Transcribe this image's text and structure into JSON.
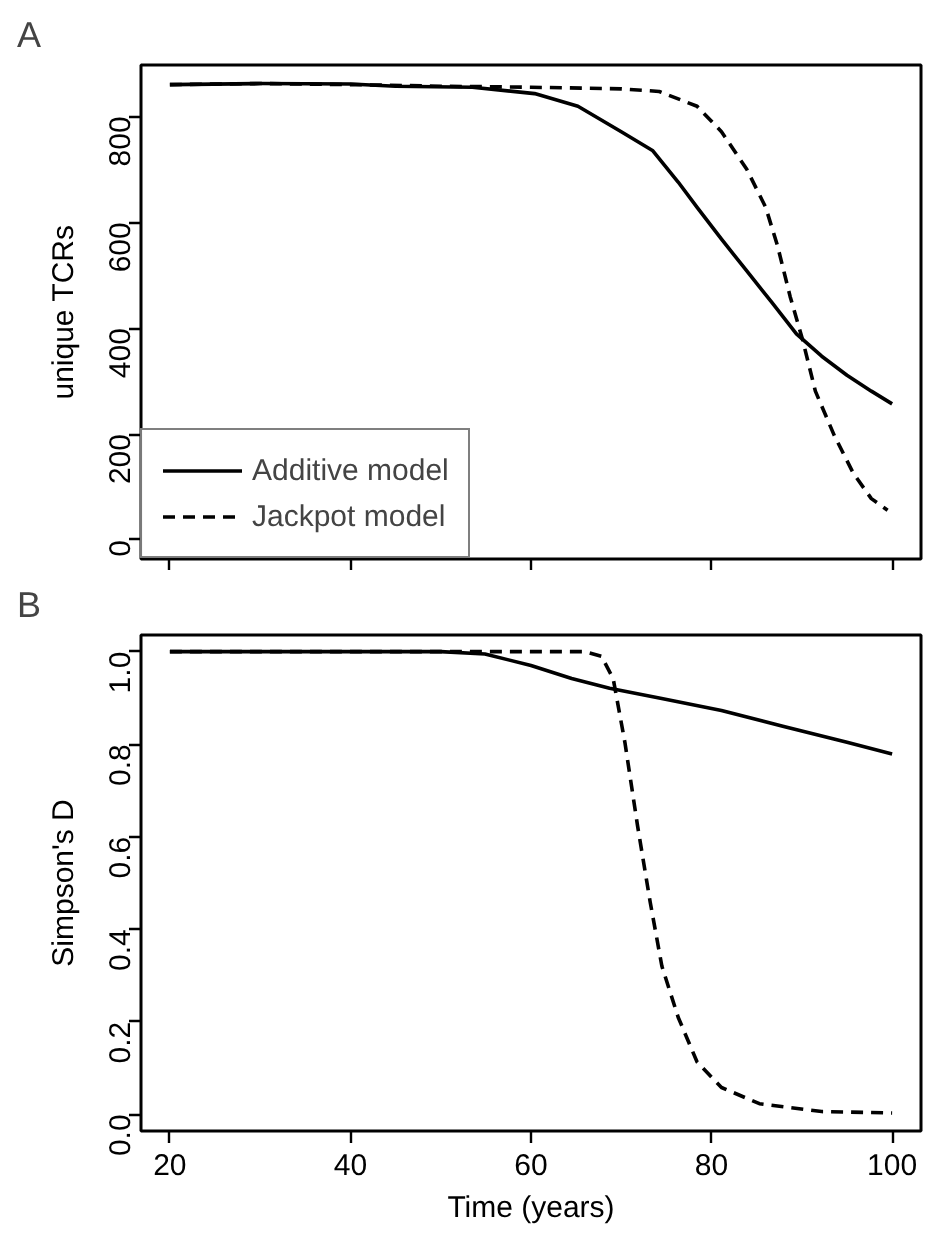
{
  "chart_data": [
    {
      "type": "line",
      "title": "A",
      "ylabel": "unique TCRs",
      "xlim": [
        16.8,
        103.2
      ],
      "ylim": [
        -36,
        897
      ],
      "xticks": [
        20,
        40,
        60,
        80,
        100
      ],
      "yticks": [
        0,
        200,
        400,
        600,
        800
      ],
      "tick_labels": "y",
      "legend": "bottom left",
      "grid": false,
      "series": [
        {
          "name": "Additive model",
          "color": "#000000",
          "line_style": "solid",
          "x": [
            20,
            30,
            40,
            45,
            53.5,
            60.4,
            65.2,
            70,
            73.5,
            76.3,
            78.4,
            81.1,
            83.9,
            86.7,
            89.4,
            92.2,
            95,
            97.7,
            100
          ],
          "values": [
            860,
            862,
            861,
            857,
            855,
            843,
            819,
            771,
            735,
            676,
            628,
            568,
            508,
            448,
            389,
            347,
            311,
            281,
            257
          ]
        },
        {
          "name": "Jackpot model",
          "color": "#000000",
          "line_style": "dashed",
          "x": [
            20,
            30,
            40,
            50,
            60,
            70,
            74.2,
            78.4,
            81.1,
            83.9,
            86,
            87.3,
            88.7,
            90.1,
            91.5,
            93.6,
            95.7,
            97.7,
            99.5
          ],
          "values": [
            860,
            862,
            860,
            857,
            855,
            852,
            847,
            819,
            771,
            700,
            628,
            556,
            460,
            377,
            281,
            197,
            126,
            78,
            56
          ]
        }
      ]
    },
    {
      "type": "line",
      "title": "B",
      "xlabel": "Time (years)",
      "ylabel": "Simpson's D",
      "xlim": [
        16.8,
        103.2
      ],
      "ylim": [
        -0.036,
        1.036
      ],
      "xticks": [
        20,
        40,
        60,
        80,
        100
      ],
      "yticks": [
        {
          "value": 0,
          "label": "0.0"
        },
        0.2,
        0.4,
        0.6,
        0.8,
        {
          "value": 1,
          "label": "1.0"
        }
      ],
      "legend": false,
      "grid": false,
      "series": [
        {
          "color": "#000000",
          "line_style": "solid",
          "x": [
            20,
            50,
            54.9,
            60,
            64.5,
            68.7,
            74.2,
            81.1,
            88,
            95,
            100
          ],
          "values": [
            1.0,
            1.0,
            0.995,
            0.97,
            0.942,
            0.921,
            0.9,
            0.873,
            0.838,
            0.804,
            0.779
          ]
        },
        {
          "color": "#000000",
          "line_style": "dashed",
          "x": [
            20,
            66,
            67.8,
            69.1,
            70.4,
            71.8,
            73.2,
            74.5,
            76.3,
            78.4,
            81.1,
            85.3,
            92.2,
            100
          ],
          "values": [
            1.0,
            1.0,
            0.99,
            0.942,
            0.804,
            0.624,
            0.459,
            0.32,
            0.21,
            0.113,
            0.058,
            0.023,
            0.006,
            0.003
          ]
        }
      ]
    }
  ]
}
